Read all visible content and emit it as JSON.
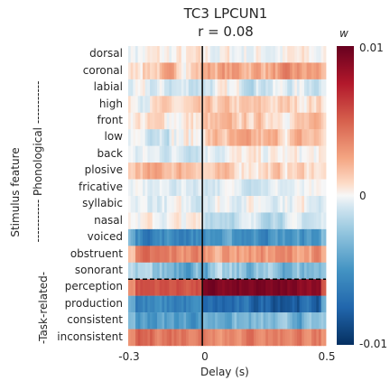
{
  "chart_data": {
    "type": "heatmap",
    "title_line1": "TC3 LPCUN1",
    "title_line2": "r = 0.08",
    "xlabel": "Delay (s)",
    "ylabel": "Stimulus feature",
    "x_ticks": [
      "-0.3",
      "0",
      "0.5"
    ],
    "x_range": [
      -0.3,
      0.5
    ],
    "group_labels": [
      {
        "label": "----------- Phonological -----------",
        "rows": [
          "dorsal",
          "sonorant"
        ]
      },
      {
        "label": "-Task-related-",
        "rows": [
          "perception",
          "inconsistent"
        ]
      }
    ],
    "rows": [
      "dorsal",
      "coronal",
      "labial",
      "high",
      "front",
      "low",
      "back",
      "plosive",
      "fricative",
      "syllabic",
      "nasal",
      "voiced",
      "obstruent",
      "sonorant",
      "perception",
      "production",
      "consistent",
      "inconsistent"
    ],
    "row_profiles": [
      {
        "name": "dorsal",
        "pre": 0.0,
        "post": 0.0,
        "noise": 0.12
      },
      {
        "name": "coronal",
        "pre": 0.15,
        "post": 0.25,
        "noise": 0.15
      },
      {
        "name": "labial",
        "pre": -0.08,
        "post": -0.05,
        "noise": 0.12
      },
      {
        "name": "high",
        "pre": 0.05,
        "post": 0.1,
        "noise": 0.12
      },
      {
        "name": "front",
        "pre": 0.05,
        "post": 0.12,
        "noise": 0.12
      },
      {
        "name": "low",
        "pre": 0.0,
        "post": 0.15,
        "noise": 0.15
      },
      {
        "name": "back",
        "pre": -0.05,
        "post": 0.0,
        "noise": 0.1
      },
      {
        "name": "plosive",
        "pre": 0.2,
        "post": 0.1,
        "noise": 0.12
      },
      {
        "name": "fricative",
        "pre": -0.05,
        "post": -0.05,
        "noise": 0.08
      },
      {
        "name": "syllabic",
        "pre": -0.05,
        "post": 0.0,
        "noise": 0.1
      },
      {
        "name": "nasal",
        "pre": 0.0,
        "post": -0.1,
        "noise": 0.1
      },
      {
        "name": "voiced",
        "pre": -0.55,
        "post": -0.5,
        "noise": 0.15
      },
      {
        "name": "obstruent",
        "pre": 0.35,
        "post": 0.3,
        "noise": 0.15
      },
      {
        "name": "sonorant",
        "pre": -0.3,
        "post": -0.3,
        "noise": 0.2
      },
      {
        "name": "perception",
        "pre": 0.55,
        "post": 0.9,
        "noise": 0.08
      },
      {
        "name": "production",
        "pre": -0.6,
        "post": -0.75,
        "noise": 0.15
      },
      {
        "name": "consistent",
        "pre": -0.45,
        "post": -0.35,
        "noise": 0.15
      },
      {
        "name": "inconsistent",
        "pre": 0.45,
        "post": 0.4,
        "noise": 0.12
      }
    ],
    "colorbar": {
      "label": "w",
      "max_label": "0.01",
      "mid_label": "0",
      "min_label": "-0.01",
      "range": [
        -0.01,
        0.01
      ],
      "colormap": "RdBu_r"
    },
    "zero_line": {
      "x": 0,
      "color": "#000000"
    },
    "separator_after_row": "sonorant"
  }
}
